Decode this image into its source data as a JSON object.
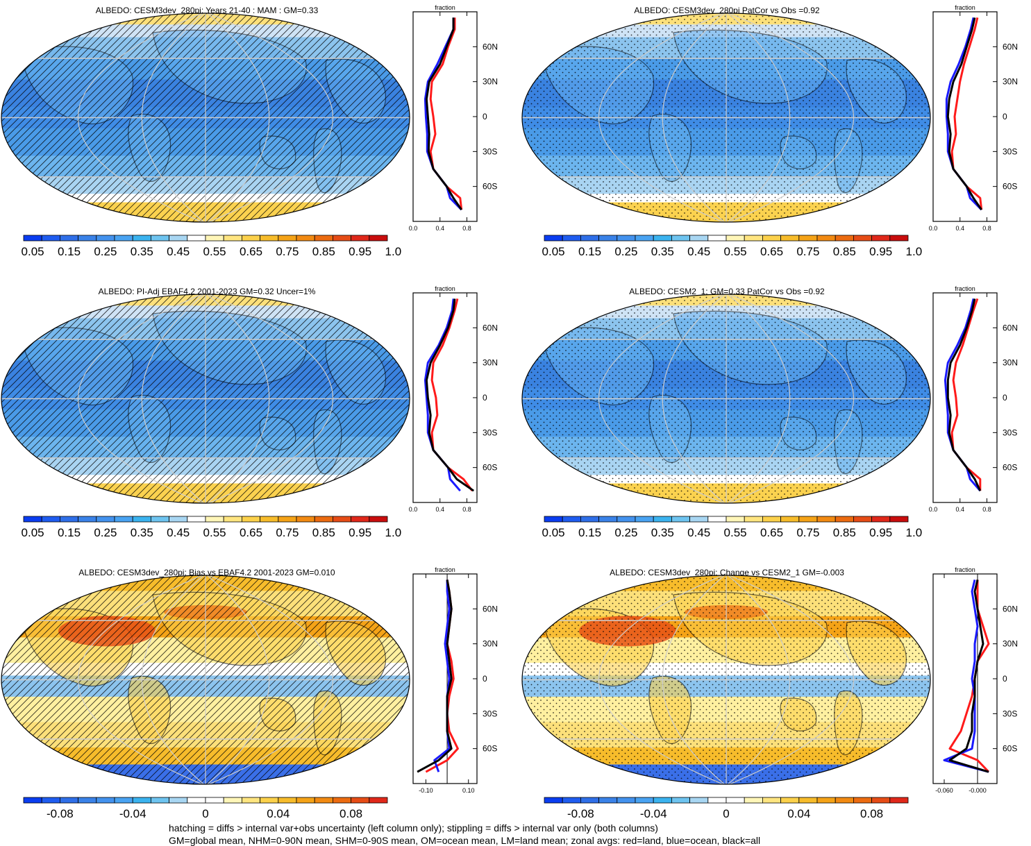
{
  "panels": [
    {
      "id": "p1",
      "title": "ALBEDO: CESM3dev_280pi: Years 21-40 : MAM : GM=0.33",
      "kind": "abs",
      "pattern": "hatch",
      "cx": 298,
      "ty": 8,
      "mx": 0,
      "my": 17,
      "mw": 592,
      "mh": 305,
      "zx": 595,
      "zy": 17,
      "zh": 302,
      "zw": 92,
      "cbx": 34,
      "cby": 338,
      "cbw": 524
    },
    {
      "id": "p2",
      "title": "ALBEDO: CESM3dev_280pi PatCor vs Obs =0.92",
      "kind": "abs",
      "pattern": "stipple",
      "cx": 1047,
      "ty": 8,
      "mx": 750,
      "my": 17,
      "mw": 592,
      "mh": 305,
      "zx": 1344,
      "zy": 17,
      "zh": 302,
      "zw": 92,
      "cbx": 784,
      "cby": 338,
      "cbw": 524
    },
    {
      "id": "p3",
      "title": "ALBEDO: PI-Adj EBAF4.2 2001-2023 GM=0.32 Uncer=1%",
      "kind": "abs",
      "pattern": "hatch",
      "cx": 298,
      "ty": 413,
      "mx": 0,
      "my": 422,
      "mw": 592,
      "mh": 305,
      "zx": 595,
      "zy": 422,
      "zh": 302,
      "zw": 92,
      "cbx": 34,
      "cby": 743,
      "cbw": 524
    },
    {
      "id": "p4",
      "title": "ALBEDO: CESM2_1: GM=0.33 PatCor vs Obs =0.92",
      "kind": "abs",
      "pattern": "stipple",
      "cx": 1047,
      "ty": 413,
      "mx": 750,
      "my": 422,
      "mw": 592,
      "mh": 305,
      "zx": 1344,
      "zy": 422,
      "zh": 302,
      "zw": 92,
      "cbx": 784,
      "cby": 743,
      "cbw": 524
    },
    {
      "id": "p5",
      "title": "ALBEDO: CESM3dev_280pi: Bias vs EBAF4.2 2001-2023 GM=0.010",
      "kind": "diff",
      "pattern": "hatch",
      "cx": 298,
      "ty": 818,
      "mx": 0,
      "my": 827,
      "mw": 592,
      "mh": 305,
      "zx": 595,
      "zy": 827,
      "zh": 302,
      "zw": 92,
      "cbx": 34,
      "cby": 1148,
      "cbw": 524
    },
    {
      "id": "p6",
      "title": "ALBEDO: CESM3dev_280pi: Change vs CESM2_1 GM=-0.003",
      "kind": "diff",
      "pattern": "stipple",
      "cx": 1047,
      "ty": 818,
      "mx": 750,
      "my": 827,
      "mw": 592,
      "mh": 305,
      "zx": 1344,
      "zy": 827,
      "zh": 302,
      "zw": 92,
      "cbx": 784,
      "cby": 1148,
      "cbw": 524
    }
  ],
  "chart_data": [
    {
      "type": "heatmap",
      "title": "ALBEDO: CESM3dev_280pi: Years 21-40 : MAM : GM=0.33",
      "colorbar": {
        "labels": [
          "0.05",
          "0.15",
          "0.25",
          "0.35",
          "0.45",
          "0.55",
          "0.65",
          "0.75",
          "0.85",
          "0.95",
          "1.05"
        ]
      },
      "zonal": {
        "type": "line",
        "label": "fraction",
        "xticks": [
          "0.0",
          "0.4",
          "0.8"
        ],
        "xlim": [
          0.0,
          0.95
        ],
        "yticks": [
          "60N",
          "30N",
          "0",
          "30S",
          "60S"
        ],
        "lat": [
          85,
          75,
          60,
          45,
          30,
          15,
          0,
          -15,
          -30,
          -45,
          -60,
          -70,
          -80
        ],
        "land": [
          0.62,
          0.62,
          0.52,
          0.44,
          0.28,
          0.26,
          0.3,
          0.33,
          0.26,
          0.3,
          0.5,
          0.7,
          0.72
        ],
        "ocean": [
          0.6,
          0.6,
          0.48,
          0.36,
          0.22,
          0.18,
          0.19,
          0.21,
          0.21,
          0.3,
          0.5,
          0.55,
          0.72
        ],
        "all": [
          0.6,
          0.6,
          0.5,
          0.4,
          0.24,
          0.2,
          0.22,
          0.24,
          0.23,
          0.3,
          0.5,
          0.6,
          0.72
        ]
      }
    },
    {
      "type": "heatmap",
      "title": "ALBEDO: CESM3dev_280pi PatCor vs Obs =0.92",
      "colorbar": {
        "labels": [
          "0.05",
          "0.15",
          "0.25",
          "0.35",
          "0.45",
          "0.55",
          "0.65",
          "0.75",
          "0.85",
          "0.95",
          "1.05"
        ]
      },
      "zonal": {
        "type": "line",
        "label": "fraction",
        "xticks": [
          "0.0",
          "0.4",
          "0.8"
        ],
        "xlim": [
          0.0,
          0.95
        ],
        "yticks": [
          "60N",
          "30N",
          "0",
          "30S",
          "60S"
        ],
        "lat": [
          85,
          75,
          60,
          45,
          30,
          15,
          0,
          -15,
          -30,
          -45,
          -60,
          -70,
          -80
        ],
        "land": [
          0.66,
          0.62,
          0.54,
          0.46,
          0.4,
          0.36,
          0.32,
          0.34,
          0.28,
          0.3,
          0.5,
          0.7,
          0.72
        ],
        "ocean": [
          0.6,
          0.56,
          0.48,
          0.38,
          0.26,
          0.2,
          0.2,
          0.22,
          0.22,
          0.3,
          0.5,
          0.55,
          0.72
        ],
        "all": [
          0.62,
          0.58,
          0.5,
          0.42,
          0.3,
          0.24,
          0.22,
          0.26,
          0.24,
          0.3,
          0.5,
          0.6,
          0.72
        ]
      }
    },
    {
      "type": "heatmap",
      "title": "ALBEDO: PI-Adj EBAF4.2 2001-2023 GM=0.32 Uncer=1%",
      "colorbar": {
        "labels": [
          "0.05",
          "0.15",
          "0.25",
          "0.35",
          "0.45",
          "0.55",
          "0.65",
          "0.75",
          "0.85",
          "0.95",
          "1.05"
        ]
      },
      "zonal": {
        "type": "line",
        "label": "fraction",
        "xticks": [
          "0.0",
          "0.4",
          "0.8"
        ],
        "xlim": [
          0.0,
          0.95
        ],
        "yticks": [
          "60N",
          "30N",
          "0",
          "30S",
          "60S"
        ],
        "lat": [
          85,
          75,
          60,
          45,
          30,
          15,
          0,
          -15,
          -30,
          -45,
          -60,
          -70,
          -80
        ],
        "land": [
          0.66,
          0.62,
          0.54,
          0.44,
          0.3,
          0.28,
          0.34,
          0.36,
          0.28,
          0.3,
          0.52,
          0.75,
          0.88
        ],
        "ocean": [
          0.6,
          0.58,
          0.5,
          0.38,
          0.22,
          0.18,
          0.2,
          0.22,
          0.22,
          0.3,
          0.52,
          0.55,
          0.7
        ],
        "all": [
          0.62,
          0.6,
          0.52,
          0.4,
          0.26,
          0.2,
          0.22,
          0.26,
          0.24,
          0.3,
          0.52,
          0.65,
          0.9
        ]
      }
    },
    {
      "type": "heatmap",
      "title": "ALBEDO: CESM2_1: GM=0.33 PatCor vs Obs =0.92",
      "colorbar": {
        "labels": [
          "0.05",
          "0.15",
          "0.25",
          "0.35",
          "0.45",
          "0.55",
          "0.65",
          "0.75",
          "0.85",
          "0.95",
          "1.05"
        ]
      },
      "zonal": {
        "type": "line",
        "label": "fraction",
        "xticks": [
          "0.0",
          "0.4",
          "0.8"
        ],
        "xlim": [
          0.0,
          0.95
        ],
        "yticks": [
          "60N",
          "30N",
          "0",
          "30S",
          "60S"
        ],
        "lat": [
          85,
          75,
          60,
          45,
          30,
          15,
          0,
          -15,
          -30,
          -45,
          -60,
          -70,
          -80
        ],
        "land": [
          0.66,
          0.6,
          0.52,
          0.44,
          0.34,
          0.3,
          0.34,
          0.36,
          0.28,
          0.3,
          0.5,
          0.7,
          0.7
        ],
        "ocean": [
          0.6,
          0.56,
          0.48,
          0.36,
          0.22,
          0.18,
          0.2,
          0.22,
          0.22,
          0.3,
          0.5,
          0.55,
          0.7
        ],
        "all": [
          0.62,
          0.58,
          0.5,
          0.4,
          0.26,
          0.22,
          0.22,
          0.26,
          0.24,
          0.3,
          0.5,
          0.62,
          0.7
        ]
      }
    },
    {
      "type": "heatmap",
      "title": "ALBEDO: CESM3dev_280pi: Bias vs EBAF4.2 2001-2023 GM=0.010",
      "colorbar": {
        "labels": [
          "-0.08",
          "-0.04",
          "0",
          "0.04",
          "0.08"
        ]
      },
      "zonal": {
        "type": "line",
        "label": "fraction",
        "xticks": [
          "-0.10",
          "0.10"
        ],
        "xlim": [
          -0.16,
          0.14
        ],
        "yticks": [
          "60N",
          "30N",
          "0",
          "30S",
          "60S"
        ],
        "lat": [
          85,
          75,
          60,
          45,
          30,
          15,
          0,
          -15,
          -30,
          -45,
          -60,
          -70,
          -80
        ],
        "land": [
          0.0,
          0.01,
          0.02,
          0.01,
          0.0,
          0.02,
          0.03,
          0.01,
          0.0,
          0.01,
          0.05,
          0.0,
          -0.1
        ],
        "ocean": [
          0.0,
          0.0,
          0.01,
          0.0,
          -0.01,
          0.0,
          0.01,
          0.0,
          0.0,
          0.0,
          0.01,
          -0.06,
          -0.04
        ],
        "all": [
          0.0,
          0.01,
          0.02,
          0.01,
          0.0,
          0.01,
          0.02,
          0.0,
          0.0,
          0.0,
          0.02,
          -0.04,
          -0.14
        ]
      }
    },
    {
      "type": "heatmap",
      "title": "ALBEDO: CESM3dev_280pi: Change vs CESM2_1 GM=-0.003",
      "colorbar": {
        "labels": [
          "-0.08",
          "-0.04",
          "0",
          "0.04",
          "0.08"
        ]
      },
      "zonal": {
        "type": "line",
        "label": "fraction",
        "xticks": [
          "-0.060",
          "-0.000"
        ],
        "xlim": [
          -0.08,
          0.035
        ],
        "yticks": [
          "60N",
          "30N",
          "0",
          "30S",
          "60S"
        ],
        "lat": [
          85,
          75,
          60,
          45,
          30,
          15,
          0,
          -15,
          -30,
          -45,
          -60,
          -70,
          -80
        ],
        "land": [
          0.0,
          0.0,
          0.0,
          0.01,
          0.02,
          0.0,
          -0.005,
          -0.01,
          -0.02,
          -0.03,
          -0.05,
          0.0,
          0.02
        ],
        "ocean": [
          -0.005,
          -0.01,
          -0.005,
          0.0,
          -0.005,
          -0.005,
          -0.01,
          -0.005,
          -0.005,
          -0.005,
          -0.01,
          -0.06,
          0.02
        ],
        "all": [
          0.0,
          -0.005,
          0.0,
          0.005,
          0.01,
          0.0,
          -0.005,
          -0.005,
          -0.01,
          -0.01,
          -0.02,
          -0.05,
          0.02
        ]
      }
    }
  ],
  "colors": {
    "abs_scale": [
      "#0a3df0",
      "#1f5cf0",
      "#2f6fe8",
      "#3a82e8",
      "#4392ee",
      "#49a3f2",
      "#3bb3ef",
      "#6ec4f0",
      "#a8d6f2",
      "#ffffff",
      "#fff6b8",
      "#ffe580",
      "#fcd14b",
      "#f7bc2b",
      "#f5a317",
      "#f28a12",
      "#ec6b10",
      "#e64c16",
      "#e0281a",
      "#c90d0d"
    ],
    "diff_scale": [
      "#0a3df0",
      "#1f5cf0",
      "#2f6fe8",
      "#3a82e8",
      "#4392ee",
      "#49a3f2",
      "#3bb3ef",
      "#6ec4f0",
      "#a8d6f2",
      "#ffffff",
      "#ffffff",
      "#fff6b8",
      "#ffe580",
      "#fcd14b",
      "#f7bc2b",
      "#f5a317",
      "#f28a12",
      "#ec6b10",
      "#e64c16",
      "#e0281a"
    ],
    "land": "#ff1a1a",
    "ocean": "#1a1aff",
    "all": "#000000"
  },
  "footnote": {
    "line1": "hatching = diffs > internal var+obs uncertainty (left column only); stippling = diffs > internal var only (both columns)",
    "line2": "GM=global mean, NHM=0-90N mean, SHM=0-90S mean, OM=ocean mean, LM=land mean; zonal avgs: red=land, blue=ocean, black=all"
  }
}
